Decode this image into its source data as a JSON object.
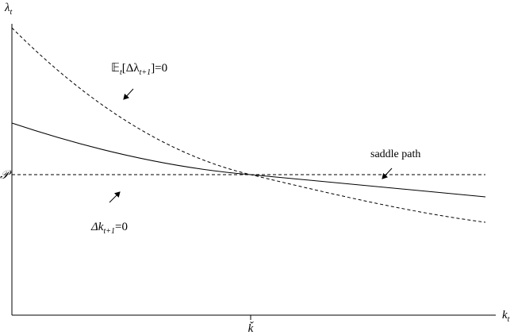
{
  "axes": {
    "y_label": {
      "main": "λ",
      "sub": "t"
    },
    "x_label": {
      "main": "k",
      "sub": "t"
    },
    "y_marker": "𝒫",
    "x_marker": "ǩ"
  },
  "annotations": {
    "expectation": {
      "main": "𝔼",
      "sub1": "t",
      "mid": "[Δλ",
      "sub2": "t+1",
      "end": "]=0"
    },
    "saddle": "saddle path",
    "capital": {
      "main": "Δk",
      "sub": "t+1",
      "end": "=0"
    }
  }
}
